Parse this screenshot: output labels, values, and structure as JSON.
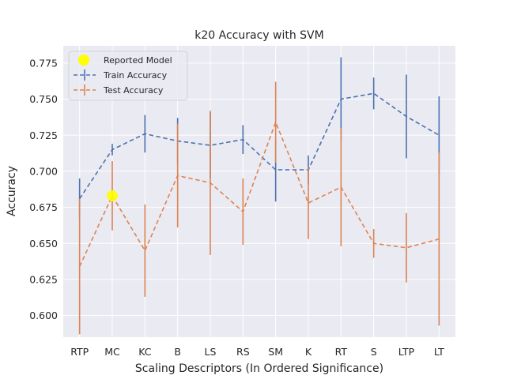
{
  "chart_data": {
    "type": "line",
    "title": "k20 Accuracy with SVM",
    "xlabel": "Scaling Descriptors (In Ordered Significance)",
    "ylabel": "Accuracy",
    "categories": [
      "RTP",
      "MC",
      "KC",
      "B",
      "LS",
      "RS",
      "SM",
      "K",
      "RT",
      "S",
      "LTP",
      "LT"
    ],
    "ylim": [
      0.585,
      0.787
    ],
    "yticks": [
      "0.600",
      "0.625",
      "0.650",
      "0.675",
      "0.700",
      "0.725",
      "0.750",
      "0.775"
    ],
    "yticks_values": [
      0.6,
      0.625,
      0.65,
      0.675,
      0.7,
      0.725,
      0.75,
      0.775
    ],
    "grid": true,
    "legend": "top-left",
    "series": [
      {
        "name": "Train Accuracy",
        "color": "#4c72b0",
        "values": [
          0.681,
          0.715,
          0.726,
          0.721,
          0.718,
          0.722,
          0.701,
          0.701,
          0.75,
          0.754,
          0.738,
          0.725
        ],
        "error": [
          0.014,
          0.004,
          0.013,
          0.016,
          0.023,
          0.01,
          0.022,
          0.01,
          0.029,
          0.011,
          0.029,
          0.027
        ]
      },
      {
        "name": "Test Accuracy",
        "color": "#dd8452",
        "values": [
          0.634,
          0.683,
          0.645,
          0.697,
          0.692,
          0.672,
          0.734,
          0.678,
          0.689,
          0.65,
          0.647,
          0.653
        ],
        "error": [
          0.047,
          0.024,
          0.032,
          0.036,
          0.05,
          0.023,
          0.028,
          0.025,
          0.041,
          0.01,
          0.024,
          0.06
        ]
      }
    ],
    "reported_model": {
      "name": "Reported Model",
      "category": "MC",
      "value": 0.683,
      "color": "#ffff00"
    }
  }
}
